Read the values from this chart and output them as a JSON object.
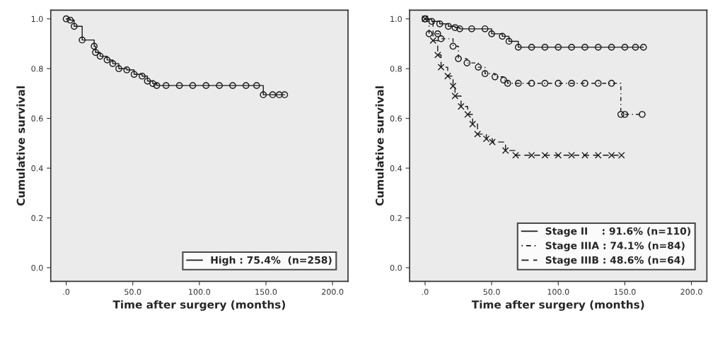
{
  "chart_data": [
    {
      "type": "step",
      "xlabel": "Time after surgery (months)",
      "ylabel": "Cumulative survival",
      "xlim": [
        -11.6,
        211.6
      ],
      "ylim": [
        -0.055,
        1.035
      ],
      "xticks": [
        {
          "value": 0,
          "label": ".0"
        },
        {
          "value": 50,
          "label": "50.0"
        },
        {
          "value": 100,
          "label": "100.0"
        },
        {
          "value": 150,
          "label": "150.0"
        },
        {
          "value": 200,
          "label": "200.0"
        }
      ],
      "yticks": [
        {
          "value": 0,
          "label": "0.0"
        },
        {
          "value": 0.2,
          "label": "0.2"
        },
        {
          "value": 0.4,
          "label": "0.4"
        },
        {
          "value": 0.6,
          "label": "0.6"
        },
        {
          "value": 0.8,
          "label": "0.8"
        },
        {
          "value": 1.0,
          "label": "1.0"
        }
      ],
      "grid": false,
      "legend": "bottom right",
      "marker": "circle",
      "line_style": "solid",
      "series": [
        {
          "name": "High : 75.4%  (n=258)",
          "color": "#1a1a1a",
          "x": [
            0,
            3,
            6,
            12,
            21,
            22,
            25.5,
            30.7,
            35,
            39.5,
            45.5,
            51,
            57,
            61,
            65,
            68,
            75,
            85,
            95,
            105,
            115,
            125,
            135,
            143,
            148,
            155,
            160,
            164
          ],
          "values": [
            1.0,
            0.995,
            0.97,
            0.915,
            0.89,
            0.865,
            0.85,
            0.835,
            0.82,
            0.8,
            0.795,
            0.777,
            0.77,
            0.75,
            0.74,
            0.732,
            0.732,
            0.732,
            0.732,
            0.732,
            0.732,
            0.732,
            0.732,
            0.732,
            0.695,
            0.695,
            0.695,
            0.695
          ]
        }
      ]
    },
    {
      "type": "step",
      "xlabel": "Time after surgery (months)",
      "ylabel": "Cumulative survival",
      "xlim": [
        -11.6,
        211.6
      ],
      "ylim": [
        -0.055,
        1.035
      ],
      "xticks": [
        {
          "value": 0,
          "label": ".0"
        },
        {
          "value": 50,
          "label": "50.0"
        },
        {
          "value": 100,
          "label": "100.0"
        },
        {
          "value": 150,
          "label": "150.0"
        },
        {
          "value": 200,
          "label": "200.0"
        }
      ],
      "yticks": [
        {
          "value": 0,
          "label": "0.0"
        },
        {
          "value": 0.2,
          "label": "0.2"
        },
        {
          "value": 0.4,
          "label": "0.4"
        },
        {
          "value": 0.6,
          "label": "0.6"
        },
        {
          "value": 0.8,
          "label": "0.8"
        },
        {
          "value": 1.0,
          "label": "1.0"
        }
      ],
      "grid": false,
      "legend": "bottom right",
      "series": [
        {
          "name": "Stage II    : 91.6% (n=110)",
          "color": "#1a1a1a",
          "marker": "circle",
          "line_style": "solid",
          "x": [
            0,
            5,
            11,
            17.5,
            22.5,
            26,
            35,
            45,
            50,
            58,
            63,
            70,
            80,
            90,
            100,
            110,
            120,
            130,
            140,
            150,
            158,
            164
          ],
          "values": [
            1.0,
            0.99,
            0.98,
            0.97,
            0.965,
            0.96,
            0.96,
            0.96,
            0.94,
            0.93,
            0.91,
            0.886,
            0.886,
            0.886,
            0.886,
            0.886,
            0.886,
            0.886,
            0.886,
            0.886,
            0.886,
            0.886
          ]
        },
        {
          "name": "Stage IIIA : 74.1% (n=84)",
          "color": "#1a1a1a",
          "marker": "circle",
          "line_style": "dotted",
          "x": [
            0,
            3,
            9.5,
            12,
            21,
            25,
            31.5,
            40,
            45,
            52.5,
            59,
            62,
            70,
            80,
            90,
            100,
            110,
            120,
            130,
            140,
            147,
            150,
            163
          ],
          "values": [
            1.0,
            0.94,
            0.94,
            0.92,
            0.89,
            0.84,
            0.823,
            0.806,
            0.78,
            0.767,
            0.754,
            0.741,
            0.741,
            0.741,
            0.741,
            0.741,
            0.741,
            0.741,
            0.741,
            0.741,
            0.616,
            0.616,
            0.616
          ]
        },
        {
          "name": "Stage IIIB : 48.6% (n=64)",
          "color": "#1a1a1a",
          "marker": "cross",
          "line_style": "dashed",
          "x": [
            0,
            6,
            9.5,
            12,
            17,
            21,
            22.5,
            27,
            32,
            35.7,
            39.4,
            46,
            50.5,
            60.4,
            68,
            80,
            90,
            100,
            110,
            120,
            130,
            140,
            147.5
          ],
          "values": [
            1.0,
            0.913,
            0.855,
            0.806,
            0.77,
            0.73,
            0.69,
            0.648,
            0.616,
            0.577,
            0.537,
            0.518,
            0.505,
            0.471,
            0.452,
            0.452,
            0.452,
            0.452,
            0.452,
            0.452,
            0.452,
            0.452,
            0.452
          ]
        }
      ]
    }
  ]
}
